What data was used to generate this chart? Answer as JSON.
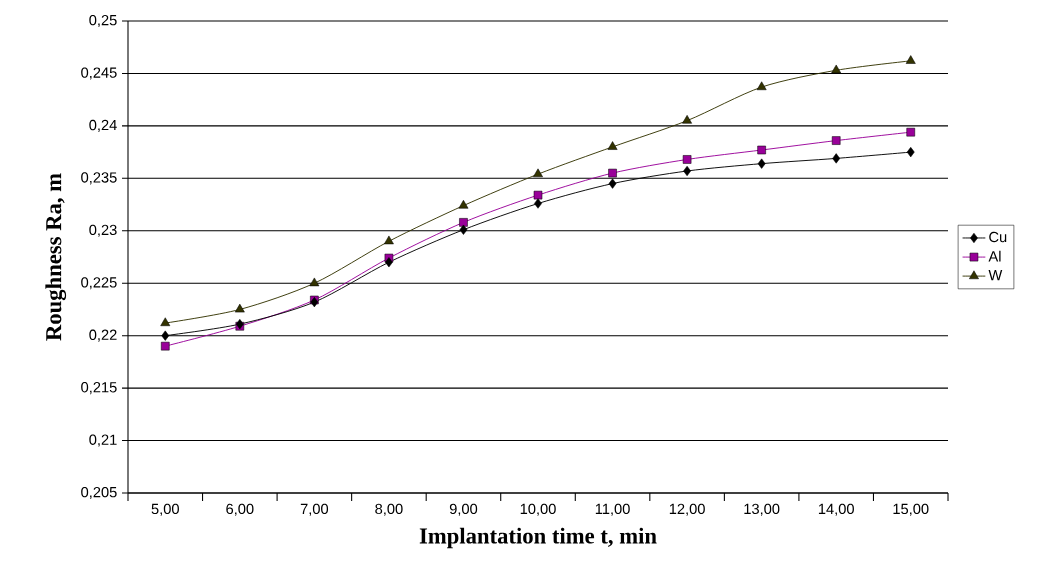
{
  "chart_data": {
    "type": "line",
    "xlabel": "Implantation time t, min",
    "ylabel": "Roughness Ra, m",
    "categories": [
      "5,00",
      "6,00",
      "7,00",
      "8,00",
      "9,00",
      "10,00",
      "11,00",
      "12,00",
      "13,00",
      "14,00",
      "15,00"
    ],
    "series": [
      {
        "name": "Cu",
        "color": "#000000",
        "marker": "diamond",
        "values": [
          0.22,
          0.2211,
          0.2232,
          0.227,
          0.2301,
          0.2326,
          0.2345,
          0.2357,
          0.2364,
          0.2369,
          0.2375
        ]
      },
      {
        "name": "Al",
        "color": "#990099",
        "marker": "square",
        "values": [
          0.219,
          0.2209,
          0.2234,
          0.2274,
          0.2308,
          0.2334,
          0.2355,
          0.2368,
          0.2377,
          0.2386,
          0.2394
        ]
      },
      {
        "name": "W",
        "color": "#333300",
        "marker": "triangle",
        "values": [
          0.2212,
          0.2225,
          0.225,
          0.229,
          0.2324,
          0.2354,
          0.238,
          0.2405,
          0.2437,
          0.2453,
          0.2462
        ]
      }
    ],
    "ylim": [
      0.205,
      0.25
    ],
    "yticks": [
      {
        "value": 0.205,
        "label": "0,205"
      },
      {
        "value": 0.21,
        "label": "0,21"
      },
      {
        "value": 0.215,
        "label": "0,215"
      },
      {
        "value": 0.22,
        "label": "0,22"
      },
      {
        "value": 0.225,
        "label": "0,225"
      },
      {
        "value": 0.23,
        "label": "0,23"
      },
      {
        "value": 0.235,
        "label": "0,235"
      },
      {
        "value": 0.24,
        "label": "0,24"
      },
      {
        "value": 0.245,
        "label": "0,245"
      },
      {
        "value": 0.25,
        "label": "0,25"
      }
    ],
    "grid": "y",
    "legend": "right"
  }
}
